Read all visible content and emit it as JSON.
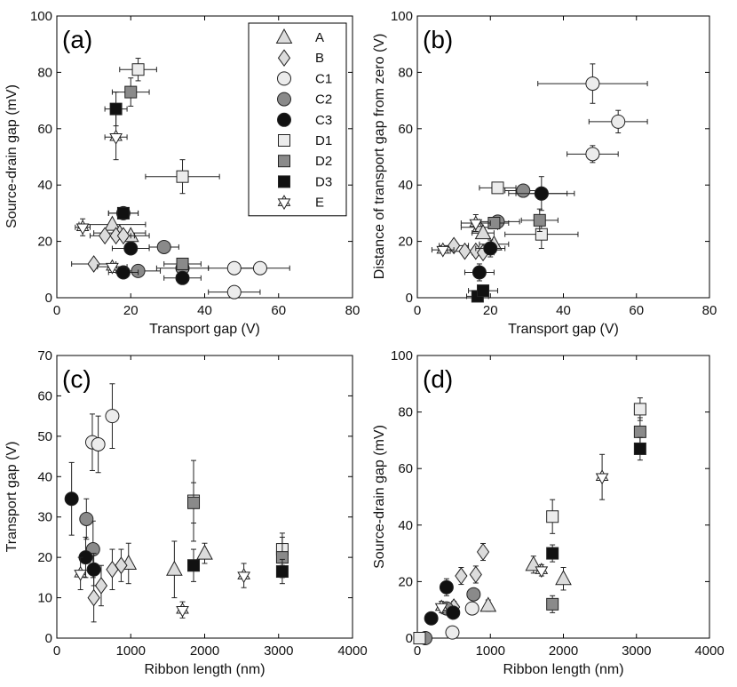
{
  "styles": {
    "A": {
      "shape": "triangle",
      "fill": "#dcdcdc"
    },
    "B": {
      "shape": "diamond",
      "fill": "#dcdcdc"
    },
    "C1": {
      "shape": "circle",
      "fill": "#ececec"
    },
    "C2": {
      "shape": "circle",
      "fill": "#8a8a8a"
    },
    "C3": {
      "shape": "circle",
      "fill": "#111111"
    },
    "D1": {
      "shape": "square",
      "fill": "#ececec"
    },
    "D2": {
      "shape": "square",
      "fill": "#8a8a8a"
    },
    "D3": {
      "shape": "square",
      "fill": "#111111"
    },
    "E": {
      "shape": "star",
      "fill": "#ffffff"
    }
  },
  "chart_data": [
    {
      "panel": "(a)",
      "type": "scatter",
      "xlabel": "Transport gap (V)",
      "ylabel": "Source-drain gap (mV)",
      "xlim": [
        0,
        80
      ],
      "ylim": [
        0,
        100
      ],
      "xticks": [
        0,
        20,
        40,
        60,
        80
      ],
      "yticks": [
        0,
        20,
        40,
        60,
        80,
        100
      ],
      "legend": [
        "A",
        "B",
        "C1",
        "C2",
        "C3",
        "D1",
        "D2",
        "D3",
        "E"
      ],
      "series": [
        {
          "name": "A",
          "points": [
            {
              "x": 15,
              "y": 26,
              "xe": 9
            },
            {
              "x": 20,
              "y": 22,
              "xe": 5
            },
            {
              "x": 17,
              "y": 23,
              "xe": 7
            }
          ]
        },
        {
          "name": "B",
          "points": [
            {
              "x": 10,
              "y": 12,
              "xe": 6
            },
            {
              "x": 13,
              "y": 22,
              "xe": 4
            },
            {
              "x": 16,
              "y": 22,
              "xe": 4
            },
            {
              "x": 18,
              "y": 22,
              "xe": 3
            }
          ]
        },
        {
          "name": "C1",
          "points": [
            {
              "x": 48,
              "y": 2,
              "xe": 7
            },
            {
              "x": 48,
              "y": 10.5,
              "xe": 7
            },
            {
              "x": 55,
              "y": 10.5,
              "xe": 8
            }
          ]
        },
        {
          "name": "C2",
          "points": [
            {
              "x": 29,
              "y": 18,
              "xe": 4
            },
            {
              "x": 22,
              "y": 9.5,
              "xe": 6
            },
            {
              "x": 34,
              "y": 10.5,
              "xe": 7
            }
          ]
        },
        {
          "name": "C3",
          "points": [
            {
              "x": 18,
              "y": 9,
              "xe": 4
            },
            {
              "x": 20,
              "y": 17.5,
              "xe": 5
            },
            {
              "x": 18,
              "y": 30,
              "xe": 4
            },
            {
              "x": 34,
              "y": 7,
              "xe": 5
            }
          ]
        },
        {
          "name": "D1",
          "points": [
            {
              "x": 22,
              "y": 81,
              "xe": 5,
              "ye": 4
            },
            {
              "x": 34,
              "y": 43,
              "xe": 10,
              "ye": 6
            }
          ]
        },
        {
          "name": "D2",
          "points": [
            {
              "x": 20,
              "y": 73,
              "xe": 5,
              "ye": 5
            },
            {
              "x": 34,
              "y": 12,
              "xe": 5
            }
          ]
        },
        {
          "name": "D3",
          "points": [
            {
              "x": 16,
              "y": 67,
              "xe": 3,
              "ye": 6
            },
            {
              "x": 18,
              "y": 30,
              "xe": 4
            }
          ]
        },
        {
          "name": "E",
          "points": [
            {
              "x": 16,
              "y": 57,
              "xe": 3,
              "ye": 8
            },
            {
              "x": 7,
              "y": 25,
              "xe": 2,
              "ye": 3
            },
            {
              "x": 15,
              "y": 11,
              "xe": 4
            }
          ]
        }
      ]
    },
    {
      "panel": "(b)",
      "type": "scatter",
      "xlabel": "Transport gap (V)",
      "ylabel": "Distance of transport gap from zero (V)",
      "xlim": [
        0,
        80
      ],
      "ylim": [
        0,
        100
      ],
      "xticks": [
        0,
        20,
        40,
        60,
        80
      ],
      "yticks": [
        0,
        20,
        40,
        60,
        80,
        100
      ],
      "series": [
        {
          "name": "A",
          "points": [
            {
              "x": 17,
              "y": 25,
              "xe": 5
            },
            {
              "x": 21,
              "y": 19,
              "xe": 4
            },
            {
              "x": 18,
              "y": 23,
              "xe": 3
            }
          ]
        },
        {
          "name": "B",
          "points": [
            {
              "x": 10,
              "y": 18.5,
              "xe": 4
            },
            {
              "x": 13,
              "y": 16.5,
              "xe": 4
            },
            {
              "x": 16,
              "y": 16.5,
              "xe": 3
            },
            {
              "x": 18,
              "y": 16,
              "xe": 3
            }
          ]
        },
        {
          "name": "C1",
          "points": [
            {
              "x": 48,
              "y": 76,
              "xe": 15,
              "ye": 7
            },
            {
              "x": 55,
              "y": 62.5,
              "xe": 8,
              "ye": 4
            },
            {
              "x": 48,
              "y": 51,
              "xe": 7,
              "ye": 3
            }
          ]
        },
        {
          "name": "C2",
          "points": [
            {
              "x": 22,
              "y": 27,
              "xe": 6
            },
            {
              "x": 29,
              "y": 38,
              "xe": 5
            },
            {
              "x": 34,
              "y": 37,
              "xe": 7
            }
          ]
        },
        {
          "name": "C3",
          "points": [
            {
              "x": 17,
              "y": 9,
              "xe": 4,
              "ye": 3
            },
            {
              "x": 20,
              "y": 17.5,
              "xe": 4,
              "ye": 3
            },
            {
              "x": 34,
              "y": 37,
              "xe": 9,
              "ye": 6
            }
          ]
        },
        {
          "name": "D1",
          "points": [
            {
              "x": 22,
              "y": 39,
              "xe": 5
            },
            {
              "x": 34,
              "y": 22.5,
              "xe": 10,
              "ye": 5
            }
          ]
        },
        {
          "name": "D2",
          "points": [
            {
              "x": 21,
              "y": 26.5,
              "xe": 4,
              "ye": 2
            },
            {
              "x": 33.5,
              "y": 27.5,
              "xe": 5,
              "ye": 4
            }
          ]
        },
        {
          "name": "D3",
          "points": [
            {
              "x": 16.5,
              "y": 0.5,
              "xe": 3
            },
            {
              "x": 18,
              "y": 2.5,
              "xe": 4
            }
          ]
        },
        {
          "name": "E",
          "points": [
            {
              "x": 7,
              "y": 17,
              "xe": 3
            },
            {
              "x": 16,
              "y": 26.5,
              "xe": 4,
              "ye": 3
            }
          ]
        }
      ]
    },
    {
      "panel": "(c)",
      "type": "scatter",
      "xlabel": "Ribbon length (nm)",
      "ylabel": "Transport gap (V)",
      "xlim": [
        0,
        4000
      ],
      "ylim": [
        0,
        70
      ],
      "xticks": [
        0,
        1000,
        2000,
        3000,
        4000
      ],
      "yticks": [
        0,
        10,
        20,
        30,
        40,
        50,
        60,
        70
      ],
      "series": [
        {
          "name": "A",
          "points": [
            {
              "x": 970,
              "y": 18.5,
              "ye": 5
            },
            {
              "x": 1590,
              "y": 17,
              "ye": 7
            },
            {
              "x": 2000,
              "y": 21,
              "ye": 2.5
            }
          ]
        },
        {
          "name": "B",
          "points": [
            {
              "x": 500,
              "y": 10,
              "ye": 6
            },
            {
              "x": 600,
              "y": 13,
              "ye": 5
            },
            {
              "x": 750,
              "y": 17,
              "ye": 5
            },
            {
              "x": 870,
              "y": 18,
              "ye": 4
            }
          ]
        },
        {
          "name": "C1",
          "points": [
            {
              "x": 480,
              "y": 48.5,
              "ye": 7
            },
            {
              "x": 560,
              "y": 48,
              "ye": 7
            },
            {
              "x": 750,
              "y": 55,
              "ye": 8
            }
          ]
        },
        {
          "name": "C2",
          "points": [
            {
              "x": 400,
              "y": 29.5,
              "ye": 5
            },
            {
              "x": 490,
              "y": 22,
              "ye": 7
            }
          ]
        },
        {
          "name": "C3",
          "points": [
            {
              "x": 200,
              "y": 34.5,
              "ye": 9
            },
            {
              "x": 390,
              "y": 20,
              "ye": 5
            },
            {
              "x": 500,
              "y": 17,
              "ye": 4
            }
          ]
        },
        {
          "name": "D1",
          "points": [
            {
              "x": 1850,
              "y": 34,
              "ye": 10
            },
            {
              "x": 3050,
              "y": 22,
              "ye": 4
            }
          ]
        },
        {
          "name": "D2",
          "points": [
            {
              "x": 1850,
              "y": 33.5,
              "ye": 5
            },
            {
              "x": 3050,
              "y": 20,
              "ye": 5
            }
          ]
        },
        {
          "name": "D3",
          "points": [
            {
              "x": 1850,
              "y": 18,
              "ye": 4
            },
            {
              "x": 3050,
              "y": 16.5,
              "ye": 3
            }
          ]
        },
        {
          "name": "E",
          "points": [
            {
              "x": 320,
              "y": 16,
              "ye": 4
            },
            {
              "x": 1700,
              "y": 7,
              "ye": 2
            },
            {
              "x": 2530,
              "y": 15.5,
              "ye": 3
            }
          ]
        }
      ]
    },
    {
      "panel": "(d)",
      "type": "scatter",
      "xlabel": "Ribbon length (nm)",
      "ylabel": "Source-drain gap (mV)",
      "xlim": [
        0,
        4000
      ],
      "ylim": [
        0,
        100
      ],
      "xticks": [
        0,
        1000,
        2000,
        3000,
        4000
      ],
      "yticks": [
        0,
        20,
        40,
        60,
        80,
        100
      ],
      "series": [
        {
          "name": "A",
          "points": [
            {
              "x": 970,
              "y": 11.5,
              "ye": 2
            },
            {
              "x": 1590,
              "y": 26,
              "ye": 3
            },
            {
              "x": 2000,
              "y": 21,
              "ye": 4
            }
          ]
        },
        {
          "name": "B",
          "points": [
            {
              "x": 500,
              "y": 11,
              "ye": 2
            },
            {
              "x": 600,
              "y": 22,
              "ye": 3
            },
            {
              "x": 800,
              "y": 22.5,
              "ye": 3
            },
            {
              "x": 900,
              "y": 30.5,
              "ye": 3
            }
          ]
        },
        {
          "name": "C1",
          "points": [
            {
              "x": 480,
              "y": 2,
              "ye": 1
            },
            {
              "x": 750,
              "y": 10.5,
              "ye": 2
            }
          ]
        },
        {
          "name": "C2",
          "points": [
            {
              "x": 400,
              "y": 10.5,
              "ye": 2
            },
            {
              "x": 770,
              "y": 15.5,
              "ye": 2
            },
            {
              "x": 110,
              "y": 0,
              "ye": 1
            }
          ]
        },
        {
          "name": "C3",
          "points": [
            {
              "x": 190,
              "y": 7,
              "ye": 2
            },
            {
              "x": 400,
              "y": 18,
              "ye": 3
            },
            {
              "x": 490,
              "y": 9,
              "ye": 2
            }
          ]
        },
        {
          "name": "D1",
          "points": [
            {
              "x": 30,
              "y": 0,
              "ye": 1
            },
            {
              "x": 1850,
              "y": 43,
              "ye": 6
            },
            {
              "x": 3050,
              "y": 81,
              "ye": 4
            }
          ]
        },
        {
          "name": "D2",
          "points": [
            {
              "x": 1850,
              "y": 12,
              "ye": 3
            },
            {
              "x": 3050,
              "y": 73,
              "ye": 5
            }
          ]
        },
        {
          "name": "D3",
          "points": [
            {
              "x": 1850,
              "y": 30,
              "ye": 3
            },
            {
              "x": 3050,
              "y": 67,
              "ye": 4
            }
          ]
        },
        {
          "name": "E",
          "points": [
            {
              "x": 330,
              "y": 11,
              "ye": 2
            },
            {
              "x": 1700,
              "y": 24,
              "ye": 2
            },
            {
              "x": 2530,
              "y": 57,
              "ye": 8
            }
          ]
        }
      ]
    }
  ]
}
